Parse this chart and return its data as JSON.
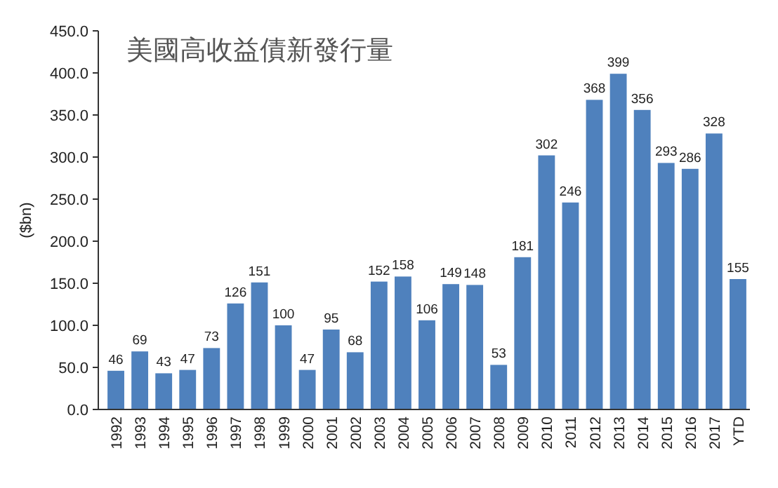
{
  "chart_data": {
    "type": "bar",
    "title": "美國高收益債新發行量",
    "ylabel": "($bn)",
    "categories": [
      "1992",
      "1993",
      "1994",
      "1995",
      "1996",
      "1997",
      "1998",
      "1999",
      "2000",
      "2001",
      "2002",
      "2003",
      "2004",
      "2005",
      "2006",
      "2007",
      "2008",
      "2009",
      "2010",
      "2011",
      "2012",
      "2013",
      "2014",
      "2015",
      "2016",
      "2017",
      "YTD"
    ],
    "values": [
      46,
      69,
      43,
      47,
      73,
      126,
      151,
      100,
      47,
      95,
      68,
      152,
      158,
      106,
      149,
      148,
      53,
      181,
      302,
      246,
      368,
      399,
      356,
      293,
      286,
      328,
      155
    ],
    "color": "#4f81bd",
    "ylim": [
      0,
      450
    ],
    "yticks": [
      {
        "value": 0,
        "label": "0.0"
      },
      {
        "value": 50,
        "label": "50.0"
      },
      {
        "value": 100,
        "label": "100.0"
      },
      {
        "value": 150,
        "label": "150.0"
      },
      {
        "value": 200,
        "label": "200.0"
      },
      {
        "value": 250,
        "label": "250.0"
      },
      {
        "value": 300,
        "label": "300.0"
      },
      {
        "value": 350,
        "label": "350.0"
      },
      {
        "value": 400,
        "label": "400.0"
      },
      {
        "value": 450,
        "label": "450.0"
      }
    ],
    "data_labels": true,
    "grid": false
  }
}
